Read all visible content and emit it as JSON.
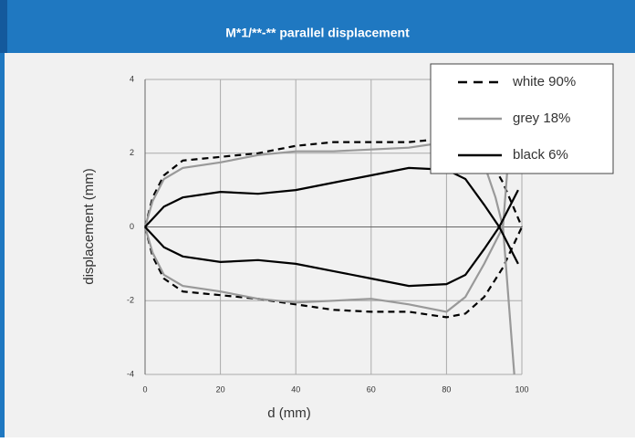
{
  "header": {
    "title": "M*1/**-** parallel displacement"
  },
  "chart_data": {
    "type": "line",
    "xlabel": "d (mm)",
    "ylabel": "displacement (mm)",
    "xlim": [
      0,
      100
    ],
    "xticks": [
      0,
      20,
      40,
      60,
      80,
      100
    ],
    "ylim": [
      -4,
      4
    ],
    "yticks": [
      -4,
      -2,
      0,
      2,
      4
    ],
    "grid": true,
    "legend": "upper right",
    "series": [
      {
        "name": "white 90%",
        "color": "#000000",
        "dash": true,
        "x": [
          0,
          2,
          5,
          10,
          20,
          30,
          40,
          50,
          60,
          70,
          80,
          85,
          90,
          95,
          100
        ],
        "values": [
          0,
          0.8,
          1.4,
          1.8,
          1.9,
          2.0,
          2.2,
          2.3,
          2.3,
          2.3,
          2.4,
          2.4,
          2.1,
          1.2,
          0
        ],
        "values_lower": [
          0,
          -0.8,
          -1.4,
          -1.75,
          -1.85,
          -1.95,
          -2.1,
          -2.25,
          -2.3,
          -2.3,
          -2.45,
          -2.35,
          -1.9,
          -1.1,
          0
        ]
      },
      {
        "name": "grey 18%",
        "color": "#999999",
        "dash": false,
        "x": [
          0,
          2,
          5,
          10,
          20,
          30,
          40,
          50,
          60,
          70,
          80,
          85,
          90,
          93,
          95,
          98
        ],
        "values": [
          0,
          0.7,
          1.3,
          1.6,
          1.75,
          1.95,
          2.05,
          2.05,
          2.1,
          2.15,
          2.3,
          2.3,
          1.7,
          0.8,
          0,
          -4
        ],
        "values_lower": [
          0,
          -0.7,
          -1.3,
          -1.6,
          -1.75,
          -1.95,
          -2.05,
          -2.0,
          -1.95,
          -2.1,
          -2.3,
          -1.9,
          -1.0,
          -0.4,
          0,
          4
        ]
      },
      {
        "name": "black 6%",
        "color": "#000000",
        "dash": false,
        "x": [
          0,
          5,
          10,
          20,
          30,
          40,
          50,
          60,
          70,
          80,
          85,
          90,
          94,
          99
        ],
        "values": [
          0,
          0.55,
          0.8,
          0.95,
          0.9,
          1.0,
          1.2,
          1.4,
          1.6,
          1.55,
          1.3,
          0.6,
          0,
          -1.0
        ],
        "values_lower": [
          0,
          -0.55,
          -0.8,
          -0.95,
          -0.9,
          -1.0,
          -1.2,
          -1.4,
          -1.6,
          -1.55,
          -1.3,
          -0.6,
          0,
          1.0
        ]
      }
    ]
  }
}
